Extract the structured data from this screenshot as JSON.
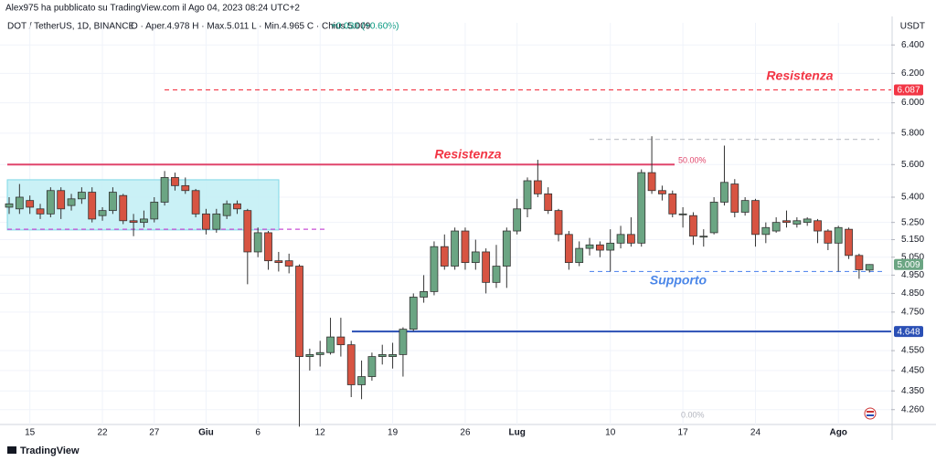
{
  "header": "Alex975 ha pubblicato su TradingView.com il Ago 04, 2023 08:24 UTC+2",
  "footer": "TradingView",
  "chart_data": {
    "type": "candlestick",
    "title": "DOT / TetherUS, 1D, BINANCE",
    "legend_text": "O · Aper.4.978  H · Max.5.011  L · Min.4.965  C · Chius.5.009",
    "change_text": "+0.030 (+0.60%)",
    "unit": "USDT",
    "categories": [
      null,
      null,
      "15",
      null,
      null,
      null,
      null,
      null,
      null,
      "22",
      null,
      null,
      null,
      null,
      "27",
      null,
      null,
      null,
      null,
      "Giu",
      null,
      null,
      null,
      null,
      "6",
      null,
      null,
      null,
      null,
      null,
      "12",
      null,
      null,
      null,
      null,
      null,
      null,
      "19",
      null,
      null,
      null,
      null,
      null,
      null,
      "26",
      null,
      null,
      null,
      null,
      "Lug",
      null,
      null,
      null,
      null,
      null,
      null,
      null,
      null,
      "10",
      null,
      null,
      null,
      null,
      null,
      null,
      "17",
      null,
      null,
      null,
      null,
      null,
      null,
      "24",
      null,
      null,
      null,
      null,
      null,
      null,
      null,
      "Ago",
      null,
      null,
      null
    ],
    "open": [
      5.34,
      5.33,
      5.38,
      5.33,
      5.3,
      5.44,
      5.35,
      5.39,
      5.43,
      5.29,
      5.32,
      5.41,
      5.26,
      5.25,
      5.27,
      5.37,
      5.52,
      5.47,
      5.44,
      5.3,
      5.21,
      5.29,
      5.36,
      5.32,
      5.08,
      5.19,
      5.03,
      5.03,
      5.0,
      4.52,
      4.53,
      4.54,
      4.62,
      4.58,
      4.38,
      4.42,
      4.52,
      4.52,
      4.53,
      4.66,
      4.83,
      4.86,
      5.11,
      5.0,
      5.2,
      5.02,
      5.08,
      4.91,
      5.0,
      5.2,
      5.33,
      5.5,
      5.42,
      5.32,
      5.18,
      5.02,
      5.1,
      5.12,
      5.09,
      5.13,
      5.18,
      5.13,
      5.55,
      5.44,
      5.42,
      5.3,
      5.29,
      5.17,
      5.19,
      5.37,
      5.48,
      5.31,
      5.38,
      5.18,
      5.2,
      5.26,
      5.24,
      5.25,
      5.26,
      5.2,
      5.13,
      5.21,
      5.06,
      4.978
    ],
    "high": [
      5.4,
      5.48,
      5.41,
      5.36,
      5.46,
      5.46,
      5.42,
      5.46,
      5.46,
      5.34,
      5.46,
      5.42,
      5.3,
      5.32,
      5.4,
      5.56,
      5.55,
      5.52,
      5.45,
      5.33,
      5.33,
      5.38,
      5.38,
      5.33,
      5.22,
      5.2,
      5.08,
      5.07,
      5.01,
      4.56,
      4.6,
      4.72,
      4.72,
      4.6,
      4.5,
      4.54,
      4.58,
      4.59,
      4.67,
      4.85,
      4.95,
      5.14,
      5.18,
      5.22,
      5.22,
      5.15,
      5.1,
      5.12,
      5.22,
      5.39,
      5.52,
      5.63,
      5.46,
      5.33,
      5.2,
      5.14,
      5.16,
      5.14,
      5.21,
      5.23,
      5.28,
      5.57,
      5.78,
      5.47,
      5.44,
      5.34,
      5.31,
      5.21,
      5.4,
      5.72,
      5.51,
      5.4,
      5.39,
      5.25,
      5.28,
      5.32,
      5.28,
      5.28,
      5.27,
      5.21,
      5.23,
      5.22,
      5.07,
      5.011
    ],
    "low": [
      5.3,
      5.3,
      5.3,
      5.27,
      5.28,
      5.27,
      5.32,
      5.36,
      5.25,
      5.26,
      5.3,
      5.24,
      5.17,
      5.22,
      5.25,
      5.35,
      5.44,
      5.42,
      5.28,
      5.18,
      5.19,
      5.27,
      5.3,
      4.9,
      5.05,
      4.98,
      4.97,
      4.96,
      4.18,
      4.45,
      4.47,
      4.53,
      4.52,
      4.32,
      4.31,
      4.4,
      4.48,
      4.46,
      4.42,
      4.65,
      4.8,
      4.84,
      4.98,
      4.98,
      4.98,
      4.98,
      4.85,
      4.88,
      4.88,
      5.18,
      5.28,
      5.4,
      5.3,
      5.14,
      4.98,
      5.0,
      5.06,
      5.05,
      4.97,
      5.1,
      5.11,
      5.11,
      5.42,
      5.38,
      5.28,
      5.22,
      5.12,
      5.11,
      5.18,
      5.35,
      5.28,
      5.29,
      5.11,
      5.13,
      5.19,
      5.22,
      5.22,
      5.23,
      5.13,
      5.09,
      4.97,
      5.04,
      4.93,
      4.965
    ],
    "close": [
      5.36,
      5.4,
      5.34,
      5.3,
      5.44,
      5.33,
      5.39,
      5.43,
      5.27,
      5.32,
      5.43,
      5.26,
      5.25,
      5.27,
      5.37,
      5.52,
      5.47,
      5.44,
      5.3,
      5.21,
      5.3,
      5.36,
      5.33,
      5.08,
      5.19,
      5.03,
      5.02,
      5.0,
      4.52,
      4.53,
      4.54,
      4.62,
      4.58,
      4.38,
      4.42,
      4.52,
      4.53,
      4.53,
      4.66,
      4.83,
      4.86,
      5.11,
      5.0,
      5.2,
      5.02,
      5.08,
      4.91,
      5.0,
      5.2,
      5.33,
      5.5,
      5.42,
      5.32,
      5.18,
      5.02,
      5.1,
      5.12,
      5.09,
      5.13,
      5.18,
      5.13,
      5.55,
      5.44,
      5.42,
      5.3,
      5.3,
      5.17,
      5.17,
      5.37,
      5.49,
      5.31,
      5.38,
      5.18,
      5.22,
      5.25,
      5.25,
      5.26,
      5.27,
      5.2,
      5.13,
      5.22,
      5.06,
      4.98,
      5.009
    ],
    "up_color": "#6ba583",
    "down_color": "#d75442",
    "ylim": [
      4.19,
      6.56
    ],
    "log_scale": true,
    "grid": true,
    "yticks": [
      {
        "value": 6.4,
        "label": "6.400"
      },
      {
        "value": 6.2,
        "label": "6.200"
      },
      {
        "value": 6.0,
        "label": "6.000"
      },
      {
        "value": 5.8,
        "label": "5.800"
      },
      {
        "value": 5.6,
        "label": "5.600"
      },
      {
        "value": 5.4,
        "label": "5.400"
      },
      {
        "value": 5.25,
        "label": "5.250"
      },
      {
        "value": 5.15,
        "label": "5.150"
      },
      {
        "value": 5.05,
        "label": "5.050"
      },
      {
        "value": 4.95,
        "label": "4.950"
      },
      {
        "value": 4.85,
        "label": "4.850"
      },
      {
        "value": 4.75,
        "label": "4.750"
      },
      {
        "value": 4.55,
        "label": "4.550"
      },
      {
        "value": 4.45,
        "label": "4.450"
      },
      {
        "value": 4.35,
        "label": "4.350"
      },
      {
        "value": 4.26,
        "label": "4.260"
      }
    ],
    "levels": [
      {
        "value": 6.087,
        "color": "#f23645",
        "style": "dashed",
        "tag": true
      },
      {
        "value": 5.6,
        "color": "#e0456b",
        "style": "solid"
      },
      {
        "value": 5.21,
        "color": "#c94fd6",
        "style": "dashed"
      },
      {
        "value": 4.648,
        "color": "#2a4fb5",
        "style": "solid",
        "tag": true
      },
      {
        "value": 4.97,
        "color": "#5b8def",
        "style": "dashed"
      },
      {
        "value": 5.76,
        "color": "#c3c6cc",
        "style": "dashed"
      }
    ],
    "zone": {
      "top": 5.506,
      "bottom": 5.206,
      "color": "#c4f0f5",
      "border": "#7fd8e6"
    },
    "annotations": [
      {
        "text": "Resistenza",
        "color": "#f23645"
      },
      {
        "text": "Resistenza",
        "color": "#f23645"
      },
      {
        "text": "Supporto",
        "color": "#4a86e8"
      }
    ],
    "fib_labels": [
      "50.00%",
      "0.00%"
    ]
  }
}
